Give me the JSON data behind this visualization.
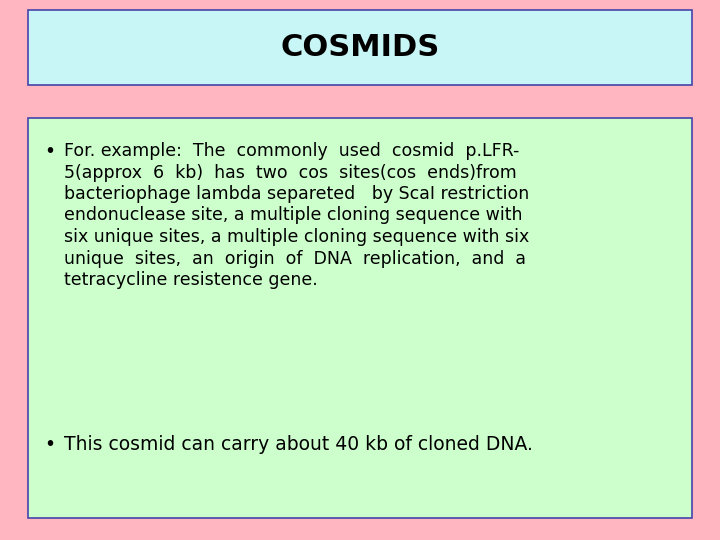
{
  "title": "COSMIDS",
  "title_fontsize": 22,
  "title_fontweight": "bold",
  "title_bg_color": "#c8f5f5",
  "slide_bg_color": "#ffb6c1",
  "content_bg_color": "#ccffcc",
  "border_color": "#4444aa",
  "bullet1_lines": [
    "For. example:  The  commonly  used  cosmid  p.LFR-",
    "5(approx  6  kb)  has  two  cos  sites(cos  ends)from",
    "bacteriophage lambda separeted   by ScaI restriction",
    "endonuclease site, a multiple cloning sequence with",
    "six unique sites, a multiple cloning sequence with six",
    "unique  sites,  an  origin  of  DNA  replication,  and  a",
    "tetracycline resistence gene."
  ],
  "bullet2": "This cosmid can carry about 40 kb of cloned DNA.",
  "text_color": "#000000",
  "text_fontsize": 12.5,
  "font_family": "DejaVu Sans"
}
